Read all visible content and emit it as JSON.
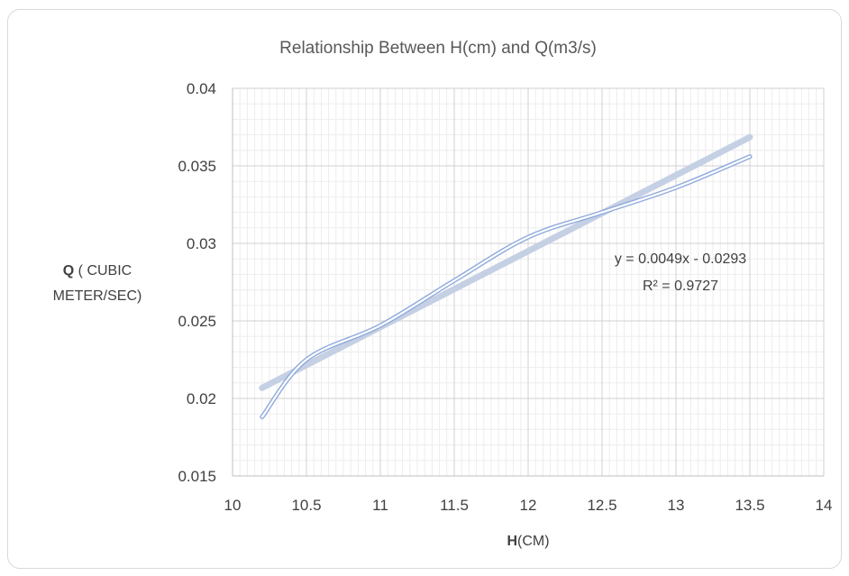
{
  "chart_data": {
    "type": "scatter",
    "title": "Relationship Between H(cm) and Q(m3/s)",
    "xlabel": {
      "bold": "H",
      "rest": "(CM)"
    },
    "ylabel": {
      "bold": "Q",
      "line1_rest": " ( CUBIC",
      "line2": "METER/SEC)"
    },
    "xlim": [
      10,
      14
    ],
    "ylim": [
      0.015,
      0.04
    ],
    "x_ticks": [
      "10",
      "10.5",
      "11",
      "11.5",
      "12",
      "12.5",
      "13",
      "13.5",
      "14"
    ],
    "y_ticks": [
      "0.015",
      "0.02",
      "0.025",
      "0.03",
      "0.035",
      "0.04"
    ],
    "grid": true,
    "series": [
      {
        "style": "smoothed double line",
        "color": "#8faadc",
        "points": [
          {
            "x": 10.2,
            "y": 0.0188
          },
          {
            "x": 10.5,
            "y": 0.0225
          },
          {
            "x": 11.0,
            "y": 0.0247
          },
          {
            "x": 11.5,
            "y": 0.0276
          },
          {
            "x": 12.0,
            "y": 0.0304
          },
          {
            "x": 12.5,
            "y": 0.032
          },
          {
            "x": 13.0,
            "y": 0.0336
          },
          {
            "x": 13.5,
            "y": 0.0356
          }
        ]
      }
    ],
    "trendline": {
      "type": "linear",
      "slope": 0.0049,
      "intercept": -0.0293,
      "x_range": [
        10.2,
        13.5
      ],
      "color": "#c5d0e4",
      "equation_label": "y = 0.0049x - 0.0293",
      "r2_label": "R² = 0.9727"
    }
  }
}
